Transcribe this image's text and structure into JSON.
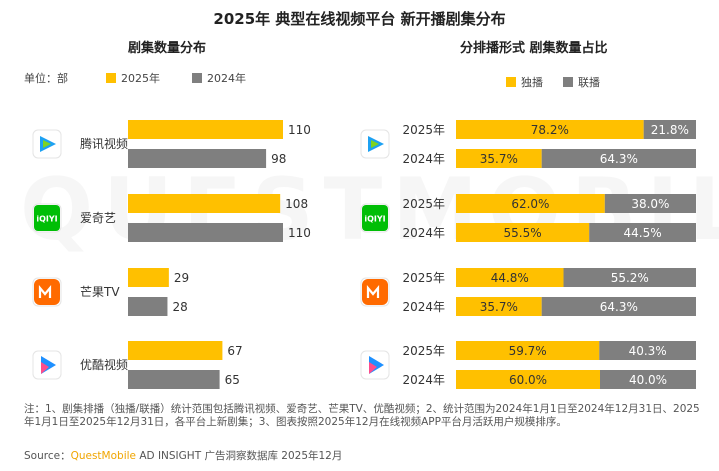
{
  "title": "2025年 典型在线视频平台 新开播剧集分布",
  "left_subtitle": "剧集数量分布",
  "right_subtitle": "分排播形式 剧集数量占比",
  "unit_label": "单位：部",
  "legend_left": {
    "a": "2025年",
    "b": "2024年"
  },
  "legend_right": {
    "a": "独播",
    "b": "联播"
  },
  "colors": {
    "primary": "#FFC000",
    "secondary": "#7F7F7F",
    "brand_orange": "#f0a500"
  },
  "platforms": [
    {
      "name": "腾讯视频",
      "icon": "tencent-video-logo",
      "logo_text": ""
    },
    {
      "name": "爱奇艺",
      "icon": "iqiyi-logo",
      "logo_text": "iQIYI"
    },
    {
      "name": "芒果TV",
      "icon": "mango-tv-logo",
      "logo_text": ""
    },
    {
      "name": "优酷视频",
      "icon": "youku-logo",
      "logo_text": ""
    }
  ],
  "chart_data": [
    {
      "type": "bar",
      "orientation": "horizontal",
      "title": "剧集数量分布",
      "unit": "部",
      "categories": [
        "腾讯视频",
        "爱奇艺",
        "芒果TV",
        "优酷视频"
      ],
      "series": [
        {
          "name": "2025年",
          "values": [
            110,
            108,
            29,
            67
          ]
        },
        {
          "name": "2024年",
          "values": [
            98,
            110,
            28,
            65
          ]
        }
      ],
      "xlim": [
        0,
        110
      ],
      "grid": false,
      "legend_position": "top-left"
    },
    {
      "type": "bar",
      "orientation": "horizontal",
      "stacked": true,
      "percent": true,
      "title": "分排播形式 剧集数量占比",
      "categories": [
        "腾讯视频",
        "爱奇艺",
        "芒果TV",
        "优酷视频"
      ],
      "rows": [
        {
          "platform": "腾讯视频",
          "year": "2025年",
          "values": [
            78.2,
            21.8
          ],
          "labels": [
            "78.2%",
            "21.8%"
          ]
        },
        {
          "platform": "腾讯视频",
          "year": "2024年",
          "values": [
            35.7,
            64.3
          ],
          "labels": [
            "35.7%",
            "64.3%"
          ]
        },
        {
          "platform": "爱奇艺",
          "year": "2025年",
          "values": [
            62.0,
            38.0
          ],
          "labels": [
            "62.0%",
            "38.0%"
          ]
        },
        {
          "platform": "爱奇艺",
          "year": "2024年",
          "values": [
            55.5,
            44.5
          ],
          "labels": [
            "55.5%",
            "44.5%"
          ]
        },
        {
          "platform": "芒果TV",
          "year": "2025年",
          "values": [
            44.8,
            55.2
          ],
          "labels": [
            "44.8%",
            "55.2%"
          ]
        },
        {
          "platform": "芒果TV",
          "year": "2024年",
          "values": [
            35.7,
            64.3
          ],
          "labels": [
            "35.7%",
            "64.3%"
          ]
        },
        {
          "platform": "优酷视频",
          "year": "2025年",
          "values": [
            59.7,
            40.3
          ],
          "labels": [
            "59.7%",
            "40.3%"
          ]
        },
        {
          "platform": "优酷视频",
          "year": "2024年",
          "values": [
            60.0,
            40.0
          ],
          "labels": [
            "60.0%",
            "40.0%"
          ]
        }
      ],
      "series_names": [
        "独播",
        "联播"
      ],
      "xlim": [
        0,
        100
      ],
      "legend_position": "top-center"
    }
  ],
  "footnote": "注：1、剧集排播（独播/联播）统计范围包括腾讯视频、爱奇艺、芒果TV、优酷视频；2、统计范围为2024年1月1日至2024年12月31日、2025年1月1日至2025年12月31日，各平台上新剧集；3、图表按照2025年12月在线视频APP平台月活跃用户规模排序。",
  "source_label": "Source：",
  "source_brand": "QuestMobile",
  "source_rest": " AD INSIGHT 广告洞察数据库 2025年12月",
  "watermark": "QUESTMOBILE"
}
